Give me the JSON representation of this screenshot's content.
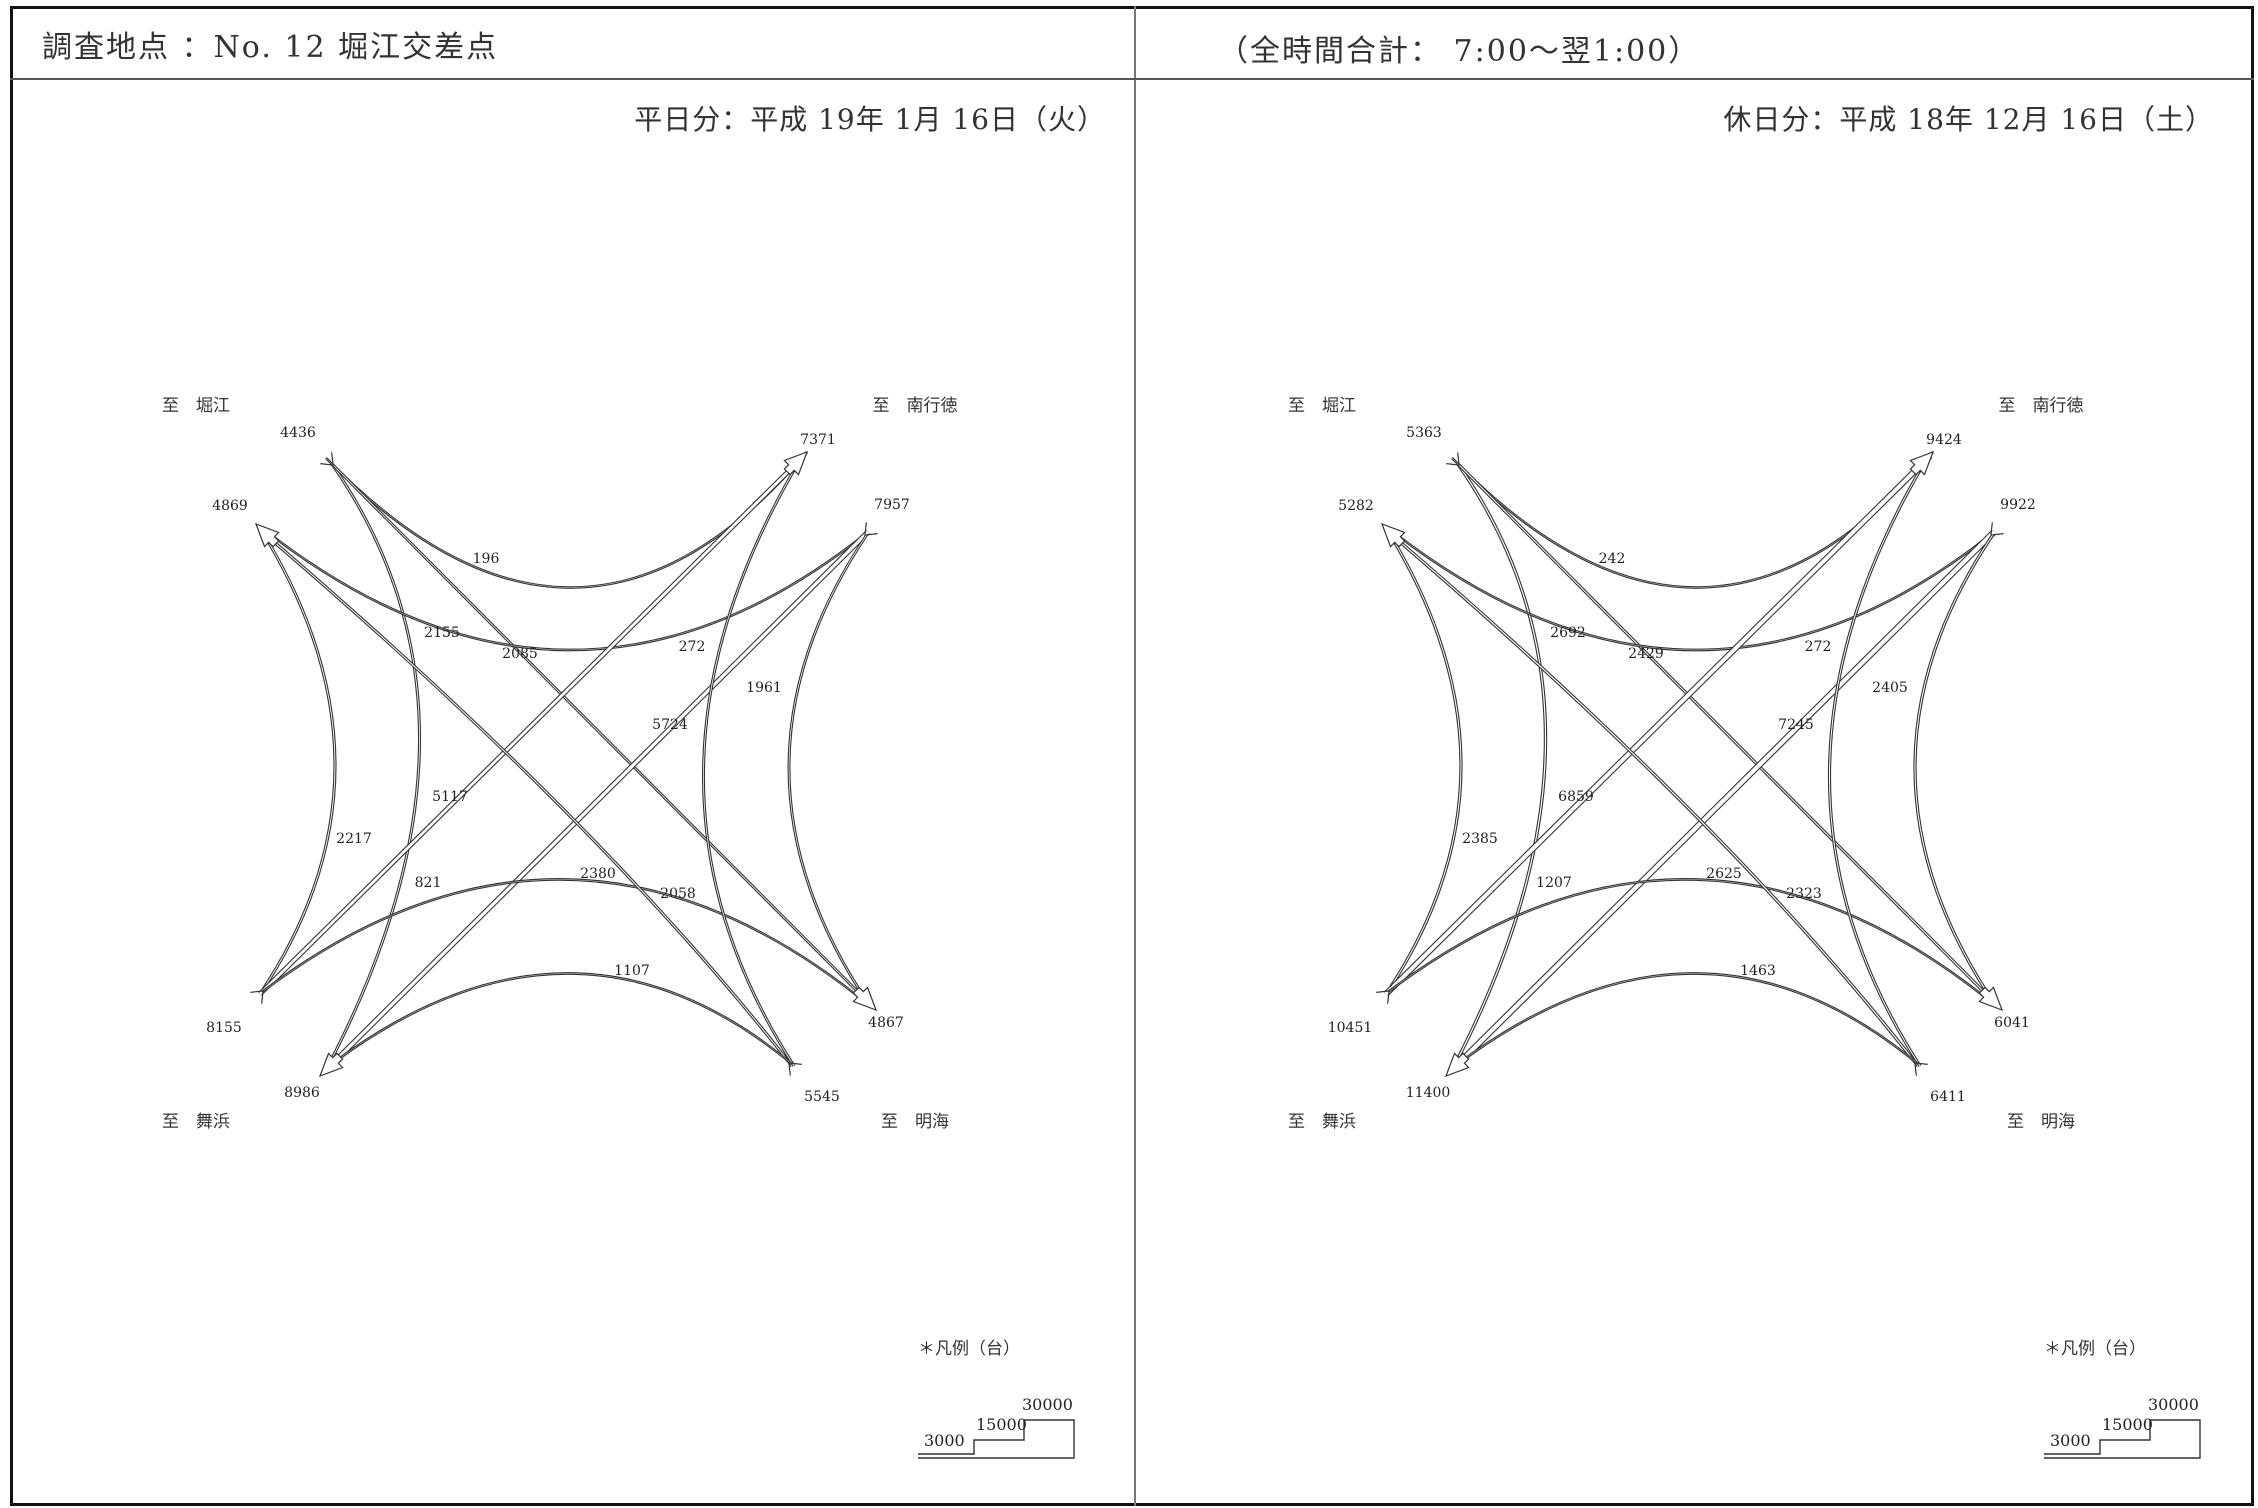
{
  "header": {
    "survey_point": "調査地点 ：No. 12 堀江交差点",
    "period": "（全時間合計： 7:00～翌1:00）"
  },
  "panels": [
    {
      "id": "weekday",
      "date": "平日分：平成 19年 1月 16日（火）",
      "directions": {
        "nw": "至　堀江",
        "ne": "至　南行徳",
        "sw": "至　舞浜",
        "se": "至　明海"
      },
      "approach_totals": {
        "nw_in": "4436",
        "nw_out": "4869",
        "ne_out": "7371",
        "ne_in": "7957",
        "sw_in": "8155",
        "sw_out": "8986",
        "se_in": "5545",
        "se_out": "4867"
      },
      "movements": {
        "nw_ne": "196",
        "nw_sw": "2155",
        "nw_se": "2085",
        "ne_nw": "272",
        "ne_sw": "5724",
        "ne_se": "1961",
        "sw_nw": "2217",
        "sw_ne": "5117",
        "sw_se": "821",
        "se_nw": "2380",
        "se_ne": "2058",
        "se_sw": "1107"
      },
      "legend": {
        "title": "＊凡例（台）",
        "v1": "3000",
        "v2": "15000",
        "v3": "30000"
      }
    },
    {
      "id": "holiday",
      "date": "休日分：平成 18年 12月 16日（土）",
      "directions": {
        "nw": "至　堀江",
        "ne": "至　南行徳",
        "sw": "至　舞浜",
        "se": "至　明海"
      },
      "approach_totals": {
        "nw_in": "5363",
        "nw_out": "5282",
        "ne_out": "9424",
        "ne_in": "9922",
        "sw_in": "10451",
        "sw_out": "11400",
        "se_in": "6411",
        "se_out": "6041"
      },
      "movements": {
        "nw_ne": "242",
        "nw_sw": "2692",
        "nw_se": "2429",
        "ne_nw": "272",
        "ne_sw": "7245",
        "ne_se": "2405",
        "sw_nw": "2385",
        "sw_ne": "6859",
        "sw_se": "1207",
        "se_nw": "2625",
        "se_ne": "2323",
        "se_sw": "1463"
      },
      "legend": {
        "title": "＊凡例（台）",
        "v1": "3000",
        "v2": "15000",
        "v3": "30000"
      }
    }
  ]
}
